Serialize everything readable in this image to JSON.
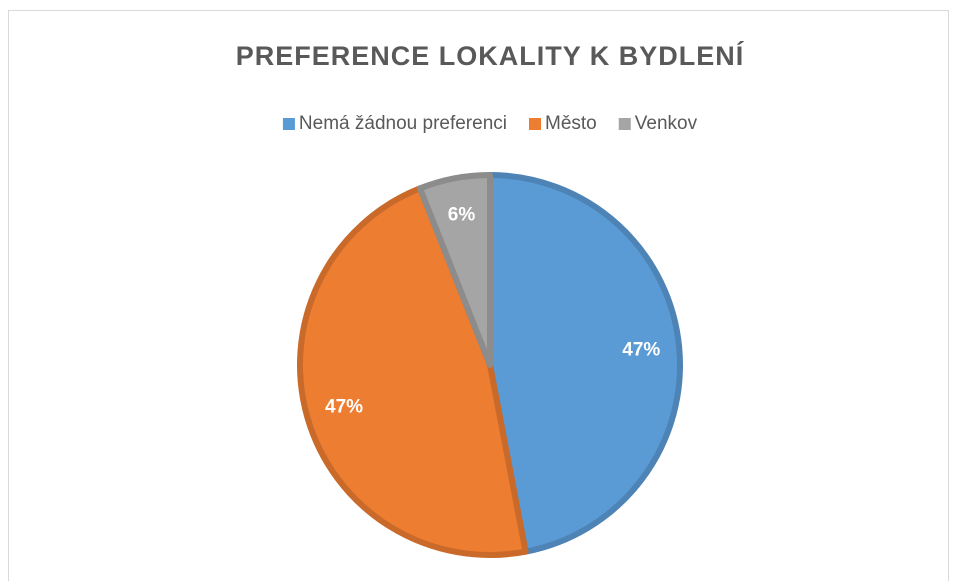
{
  "chart_data": {
    "type": "pie",
    "title": "PREFERENCE LOKALITY K BYDLENÍ",
    "categories": [
      "Nemá žádnou preferenci",
      "Město",
      "Venkov"
    ],
    "values": [
      47,
      47,
      6
    ],
    "value_labels": [
      "47%",
      "47%",
      "6%"
    ],
    "colors": [
      "#5b9bd5",
      "#ed7d31",
      "#a5a5a5"
    ],
    "legend": "top"
  }
}
